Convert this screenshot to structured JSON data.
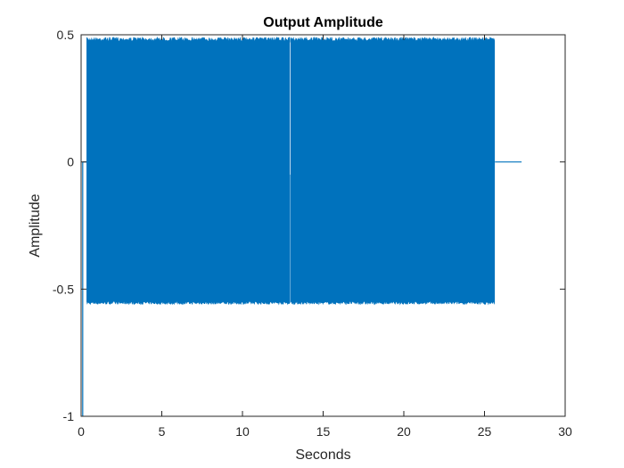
{
  "chart_data": {
    "type": "line",
    "title": "Output Amplitude",
    "xlabel": "Seconds",
    "ylabel": "Amplitude",
    "xlim": [
      0,
      30
    ],
    "ylim": [
      -1,
      0.5
    ],
    "x_ticks": [
      0,
      5,
      10,
      15,
      20,
      25,
      30
    ],
    "x_tick_labels": [
      "0",
      "5",
      "10",
      "15",
      "20",
      "25",
      "30"
    ],
    "y_ticks": [
      -1,
      -0.5,
      0,
      0.5
    ],
    "y_tick_labels": [
      "-1",
      "-0.5",
      "0",
      "0.5"
    ],
    "grid": false,
    "series": [
      {
        "color": "#0072BD",
        "segments": [
          {
            "kind": "spike",
            "x": 0.1,
            "y": [
              -1,
              0
            ]
          },
          {
            "kind": "silence",
            "x": [
              0.1,
              0.35
            ],
            "y": 0
          },
          {
            "kind": "oscillation",
            "x": [
              0.35,
              12.95
            ],
            "upper": 0.49,
            "lower": -0.56
          },
          {
            "kind": "dip",
            "x": 12.97,
            "y": [
              -0.05,
              0.47
            ]
          },
          {
            "kind": "oscillation",
            "x": [
              13.0,
              25.65
            ],
            "upper": 0.49,
            "lower": -0.56
          },
          {
            "kind": "silence",
            "x": [
              25.65,
              27.3
            ],
            "y": 0
          }
        ]
      }
    ]
  }
}
